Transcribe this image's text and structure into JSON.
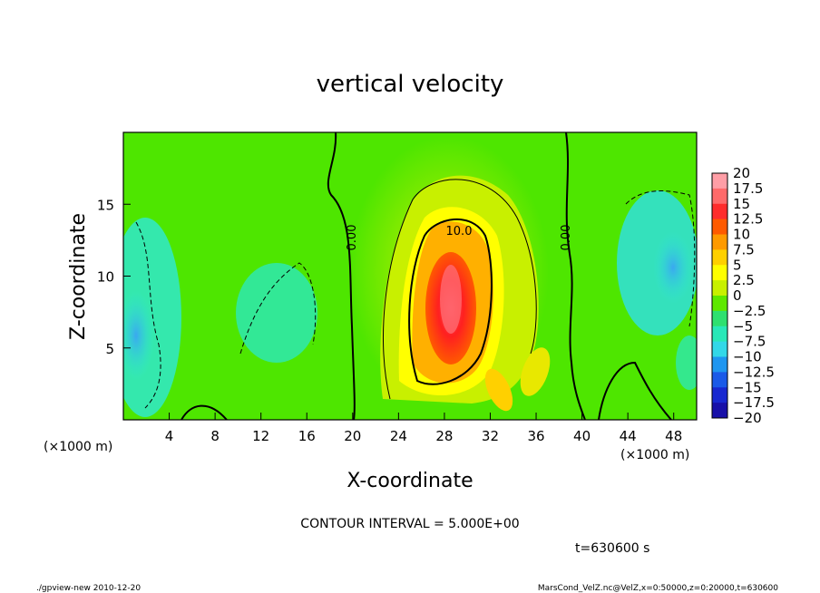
{
  "chart_data": {
    "type": "heatmap",
    "title": "vertical velocity",
    "xlabel": "X-coordinate",
    "ylabel": "Z-coordinate",
    "x_unit": "(×1000 m)",
    "y_unit": "(×1000 m)",
    "xlim": [
      0,
      50
    ],
    "ylim": [
      0,
      20
    ],
    "x_ticks": [
      "4",
      "8",
      "12",
      "16",
      "20",
      "24",
      "28",
      "32",
      "36",
      "40",
      "44",
      "48"
    ],
    "y_ticks": [
      "5",
      "10",
      "15"
    ],
    "colorbar": {
      "labels": [
        "20",
        "17.5",
        "15",
        "12.5",
        "10",
        "7.5",
        "5",
        "2.5",
        "0",
        "−2.5",
        "−5",
        "−7.5",
        "−10",
        "−12.5",
        "−15",
        "−17.5",
        "−20"
      ],
      "colors": [
        "#ff9ea6",
        "#ff6a6a",
        "#ff2c2c",
        "#ff5a00",
        "#ff9a00",
        "#ffd000",
        "#ffff00",
        "#c8f000",
        "#5ee800",
        "#2ee070",
        "#28e8b8",
        "#32d8e8",
        "#1e96f0",
        "#1a5ae8",
        "#1828d0",
        "#1810a8",
        "#5a14b8"
      ]
    },
    "contour_labels": [
      "0.00",
      "10.0",
      "0.00"
    ],
    "contour_interval": "CONTOUR INTERVAL = 5.000E+00",
    "time_label": "t=630600 s"
  },
  "footer": {
    "left": "./gpview-new  2010-12-20",
    "right": "MarsCond_VelZ.nc@VelZ,x=0:50000,z=0:20000,t=630600"
  }
}
